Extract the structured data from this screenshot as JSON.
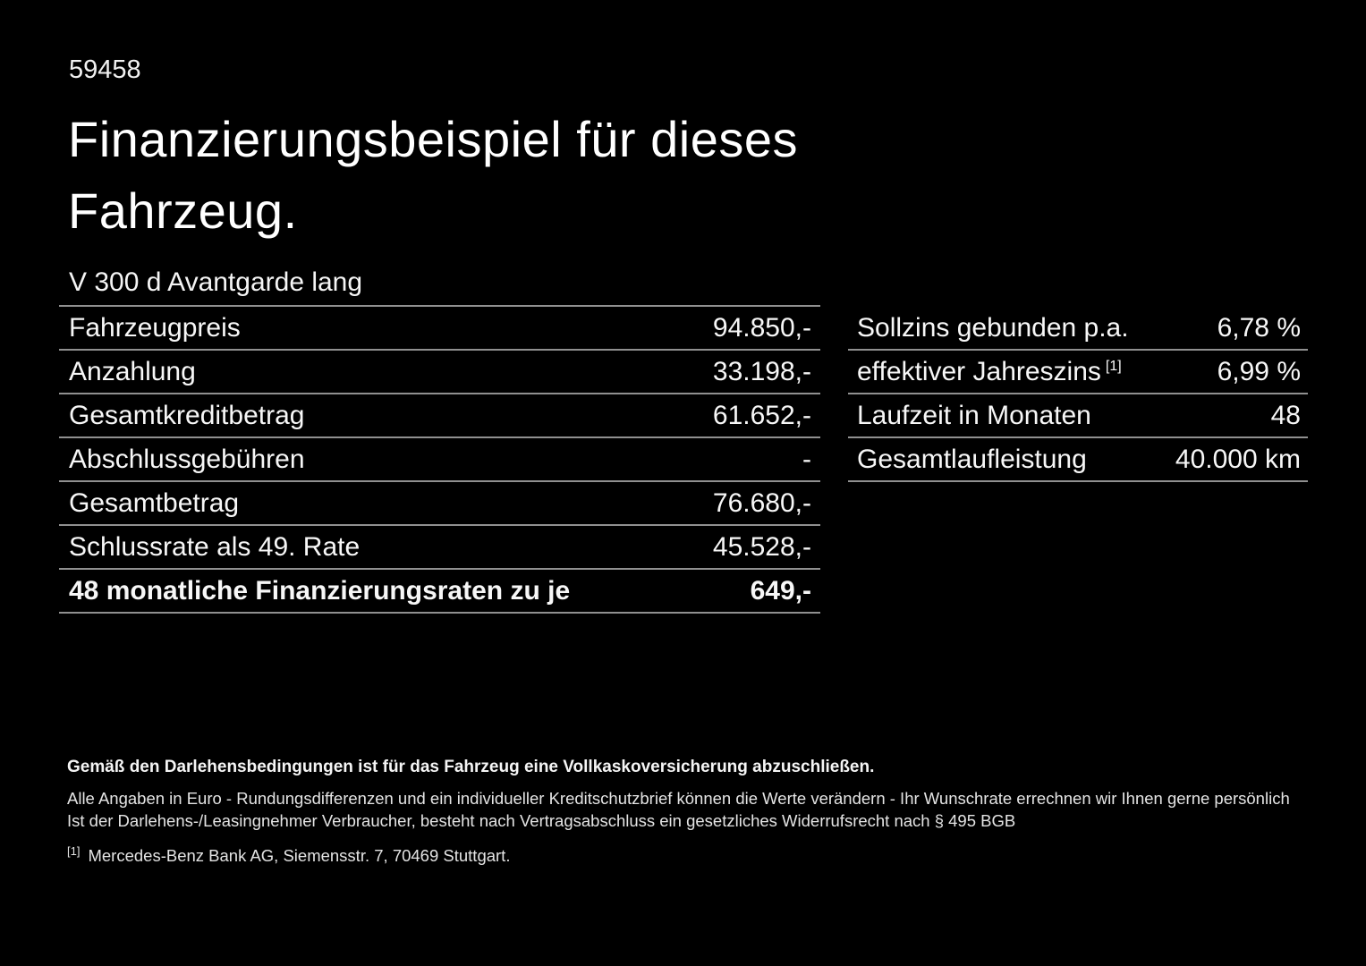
{
  "doc_id": "59458",
  "title": {
    "line1": "Finanzierungsbeispiel für dieses",
    "line2": "Fahrzeug."
  },
  "vehicle_model": "V 300 d Avantgarde lang",
  "finance_table": {
    "rows": [
      {
        "label": "Fahrzeugpreis",
        "value": "94.850,-"
      },
      {
        "label": "Anzahlung",
        "value": "33.198,-"
      },
      {
        "label": "Gesamtkreditbetrag",
        "value": "61.652,-"
      },
      {
        "label": "Abschlussgebühren",
        "value": "-"
      },
      {
        "label": "Gesamtbetrag",
        "value": "76.680,-"
      },
      {
        "label": "Schlussrate als 49. Rate",
        "value": "45.528,-"
      },
      {
        "label": "48 monatliche Finanzierungsraten zu je",
        "value": "649,-",
        "bold": true
      }
    ]
  },
  "conditions_table": {
    "rows": [
      {
        "label": "Sollzins gebunden p.a.",
        "value": "6,78 %"
      },
      {
        "label": "effektiver Jahreszins",
        "footnote": "[1]",
        "value": "6,99 %"
      },
      {
        "label": "Laufzeit in Monaten",
        "value": "48"
      },
      {
        "label": "Gesamtlaufleistung",
        "value": "40.000 km"
      }
    ]
  },
  "footer": {
    "bold_note": "Gemäß den Darlehensbedingungen ist für das Fahrzeug eine Vollkaskoversicherung abzuschließen.",
    "note1": "Alle Angaben in Euro - Rundungsdifferenzen und ein individueller Kreditschutzbrief können die Werte verändern - Ihr Wunschrate errechnen wir Ihnen gerne persönlich",
    "note2": "Ist der Darlehens-/Leasingnehmer Verbraucher, besteht nach Vertragsabschluss ein gesetzliches Widerrufsrecht nach § 495 BGB",
    "footnote_marker": "[1]",
    "footnote_text": "Mercedes-Benz Bank AG, Siemensstr. 7, 70469 Stuttgart."
  },
  "colors": {
    "background": "#000000",
    "text": "#fafafa",
    "divider": "#909090",
    "note": "#e4e4e4"
  }
}
